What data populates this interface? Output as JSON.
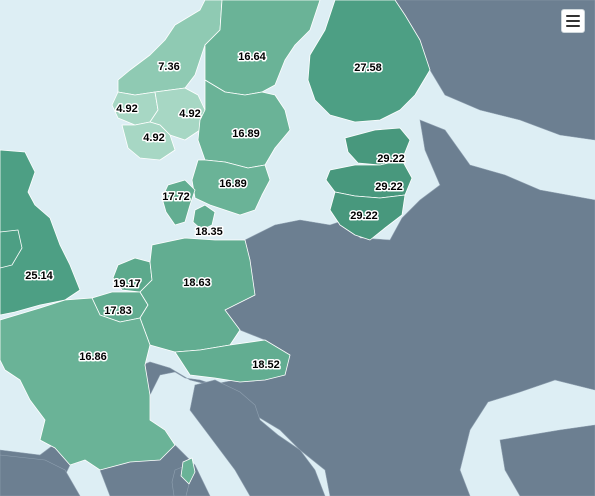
{
  "map": {
    "colors": {
      "water": "#ddeef4",
      "no_data": "#6c7f91",
      "scale_low": "#a7d7c4",
      "scale_high": "#3f9c7d"
    },
    "regions": [
      {
        "id": "norway-north",
        "label": "7.36",
        "value": 7.36
      },
      {
        "id": "norway-west-1",
        "label": "4.92",
        "value": 4.92
      },
      {
        "id": "norway-east",
        "label": "4.92",
        "value": 4.92
      },
      {
        "id": "norway-west-2",
        "label": "4.92",
        "value": 4.92
      },
      {
        "id": "sweden-north",
        "label": "16.64",
        "value": 16.64
      },
      {
        "id": "sweden-central",
        "label": "16.89",
        "value": 16.89
      },
      {
        "id": "sweden-south",
        "label": "16.89",
        "value": 16.89
      },
      {
        "id": "finland",
        "label": "27.58",
        "value": 27.58
      },
      {
        "id": "estonia",
        "label": "29.22",
        "value": 29.22
      },
      {
        "id": "latvia",
        "label": "29.22",
        "value": 29.22
      },
      {
        "id": "lithuania",
        "label": "29.22",
        "value": 29.22
      },
      {
        "id": "denmark-west",
        "label": "17.72",
        "value": 17.72
      },
      {
        "id": "denmark-east",
        "label": "18.35",
        "value": 18.35
      },
      {
        "id": "uk",
        "label": "25.14",
        "value": 25.14
      },
      {
        "id": "netherlands",
        "label": "19.17",
        "value": 19.17
      },
      {
        "id": "belgium",
        "label": "17.83",
        "value": 17.83
      },
      {
        "id": "germany",
        "label": "18.63",
        "value": 18.63
      },
      {
        "id": "france",
        "label": "16.86",
        "value": 16.86
      },
      {
        "id": "austria",
        "label": "18.52",
        "value": 18.52
      }
    ]
  },
  "menu": {
    "icon": "hamburger-menu-icon"
  }
}
